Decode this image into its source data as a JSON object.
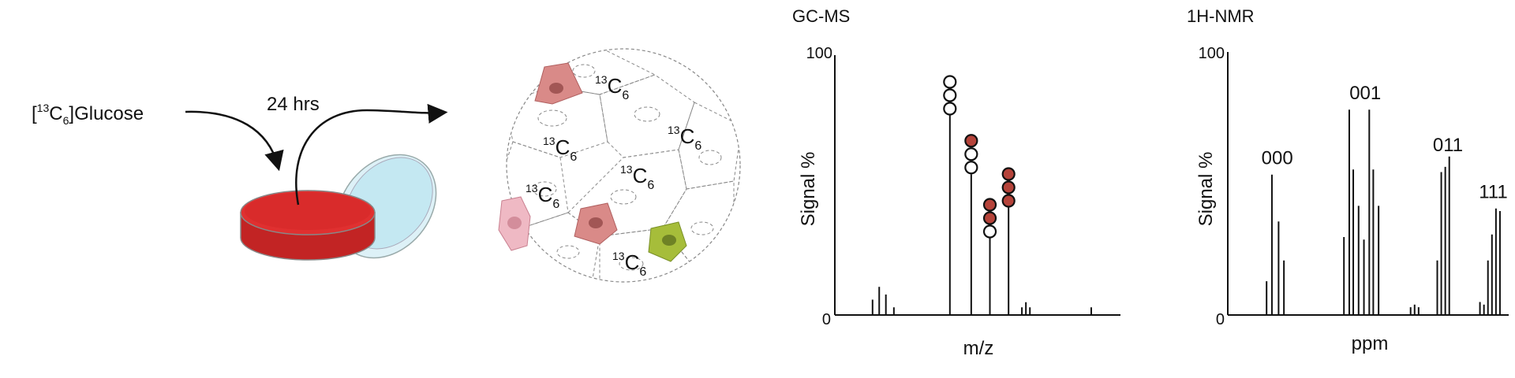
{
  "left": {
    "glucose_label": "Glucose",
    "isotope_mass": "13",
    "isotope_element": "C",
    "isotope_count": "6",
    "duration_label": "24 hrs",
    "cell_label_mass": "13",
    "cell_label_element": "C",
    "cell_label_count": "6"
  },
  "charts": [
    {
      "type": "bar",
      "title": "GC-MS",
      "xlabel": "m/z",
      "ylabel": "Signal %",
      "y_tick_top": "100",
      "y_tick_bottom": "0",
      "ylim": [
        0,
        100
      ],
      "xlim": [
        0,
        100
      ],
      "peaks": [
        {
          "x": 10,
          "y": 6
        },
        {
          "x": 12.5,
          "y": 11
        },
        {
          "x": 15,
          "y": 8
        },
        {
          "x": 18,
          "y": 3
        },
        {
          "x": 39,
          "y": 78,
          "label": [
            0,
            0,
            0
          ]
        },
        {
          "x": 47,
          "y": 55,
          "label": [
            1,
            0,
            0
          ]
        },
        {
          "x": 54,
          "y": 30,
          "label": [
            1,
            1,
            0
          ]
        },
        {
          "x": 61,
          "y": 42,
          "label": [
            1,
            1,
            1
          ]
        },
        {
          "x": 66,
          "y": 3
        },
        {
          "x": 67.5,
          "y": 5
        },
        {
          "x": 69,
          "y": 3
        },
        {
          "x": 92,
          "y": 3
        }
      ],
      "label_colors": {
        "unlabeled": "#ffffff",
        "labeled": "#b5433a"
      }
    },
    {
      "type": "bar",
      "title": "1H-NMR",
      "xlabel": "ppm",
      "ylabel": "Signal %",
      "y_tick_top": "100",
      "y_tick_bottom": "0",
      "ylim": [
        0,
        100
      ],
      "xlim": [
        0,
        100
      ],
      "group_labels": [
        {
          "text": "000",
          "x": 15,
          "y": 58
        },
        {
          "text": "001",
          "x": 48,
          "y": 83
        },
        {
          "text": "011",
          "x": 79,
          "y": 63
        },
        {
          "text": "111",
          "x": 96,
          "y": 45
        }
      ],
      "peaks": [
        {
          "x": 11,
          "y": 13
        },
        {
          "x": 13,
          "y": 54
        },
        {
          "x": 15.5,
          "y": 36
        },
        {
          "x": 17.5,
          "y": 21
        },
        {
          "x": 40,
          "y": 30
        },
        {
          "x": 42,
          "y": 79
        },
        {
          "x": 43.5,
          "y": 56
        },
        {
          "x": 45.5,
          "y": 42
        },
        {
          "x": 47.5,
          "y": 29
        },
        {
          "x": 49.5,
          "y": 79
        },
        {
          "x": 51,
          "y": 56
        },
        {
          "x": 53,
          "y": 42
        },
        {
          "x": 65,
          "y": 3
        },
        {
          "x": 66.5,
          "y": 4
        },
        {
          "x": 68,
          "y": 3
        },
        {
          "x": 75,
          "y": 21
        },
        {
          "x": 76.5,
          "y": 55
        },
        {
          "x": 78,
          "y": 57
        },
        {
          "x": 79.5,
          "y": 61
        },
        {
          "x": 91,
          "y": 5
        },
        {
          "x": 92.5,
          "y": 4
        },
        {
          "x": 94,
          "y": 21
        },
        {
          "x": 95.5,
          "y": 31
        },
        {
          "x": 97,
          "y": 41
        },
        {
          "x": 98.5,
          "y": 40
        }
      ]
    }
  ],
  "colors": {
    "medium": "#d92b2b",
    "dish_glass": "#c4e8f2",
    "cell_red": "#d98a88",
    "cell_pink": "#efb9c4",
    "cell_green": "#a6bd3a"
  }
}
